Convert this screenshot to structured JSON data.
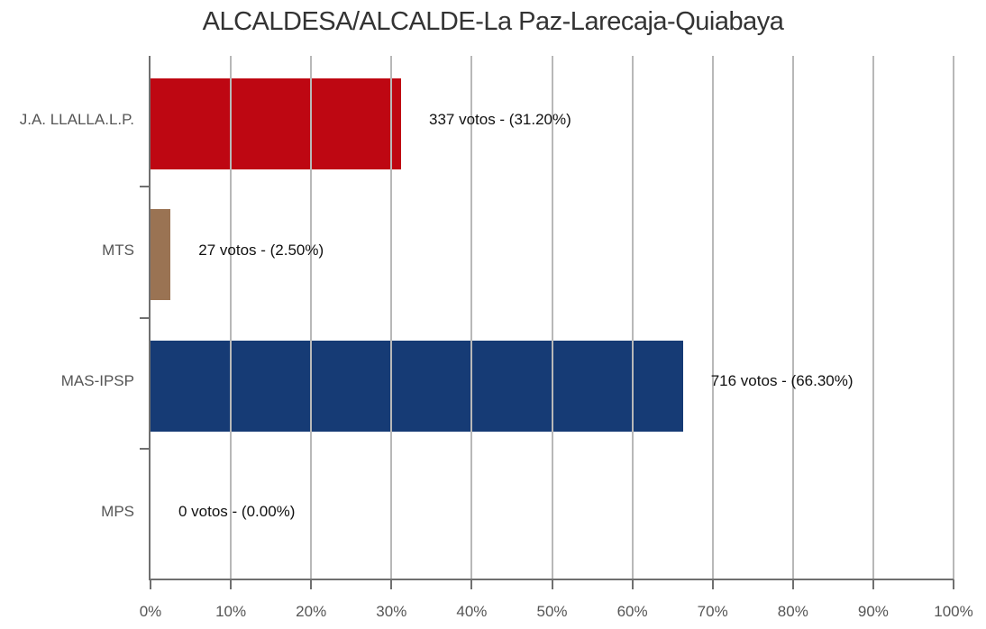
{
  "chart_data": {
    "type": "bar",
    "orientation": "horizontal",
    "title": "ALCALDESA/ALCALDE-La Paz-Larecaja-Quiabaya",
    "categories": [
      "J.A. LLALLA.L.P.",
      "MTS",
      "MAS-IPSP",
      "MPS"
    ],
    "values": [
      31.2,
      2.5,
      66.3,
      0.0
    ],
    "votes": [
      337,
      27,
      716,
      0
    ],
    "data_labels": [
      "337 votos - (31.20%)",
      "27 votos - (2.50%)",
      "716 votos - (66.30%)",
      "0 votos - (0.00%)"
    ],
    "colors": [
      "#be0712",
      "#9a7353",
      "#163b75",
      "#cccccc"
    ],
    "xlabel": "",
    "ylabel": "",
    "xlim": [
      0,
      100
    ],
    "x_ticks": [
      "0%",
      "10%",
      "20%",
      "30%",
      "40%",
      "50%",
      "60%",
      "70%",
      "80%",
      "90%",
      "100%"
    ],
    "grid": "vertical",
    "legend": "none"
  }
}
